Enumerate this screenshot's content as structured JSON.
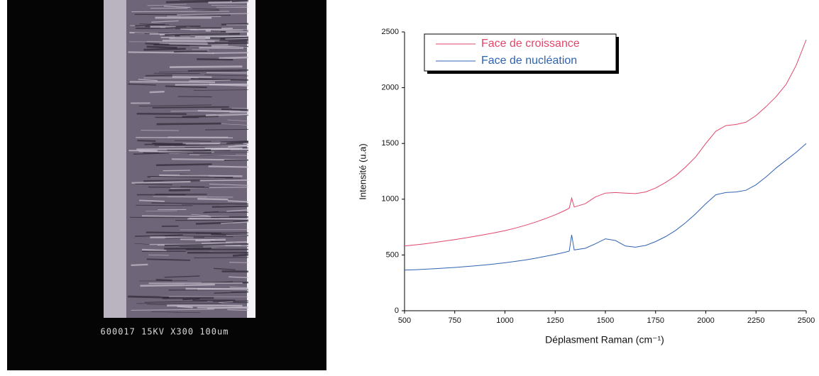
{
  "sem_image": {
    "label": "600017 15KV X300 100um"
  },
  "chart_data": {
    "type": "line",
    "x_label": "Déplasment Raman (cm⁻¹)",
    "y_label": "Intensité (u.a)",
    "xlim": [
      500,
      2500
    ],
    "xticks": [
      500,
      750,
      1000,
      1250,
      1500,
      1750,
      2000,
      2250,
      2500
    ],
    "ylim": [
      0,
      2500
    ],
    "yticks": [
      0,
      500,
      1000,
      1500,
      2000,
      2500
    ],
    "legend": "upper-left",
    "x": [
      500,
      550,
      600,
      650,
      700,
      750,
      800,
      850,
      900,
      950,
      1000,
      1050,
      1100,
      1150,
      1200,
      1250,
      1300,
      1320,
      1332,
      1345,
      1400,
      1450,
      1500,
      1550,
      1600,
      1650,
      1700,
      1750,
      1800,
      1850,
      1900,
      1950,
      2000,
      2050,
      2100,
      2150,
      2200,
      2250,
      2300,
      2350,
      2400,
      2450,
      2500
    ],
    "series": [
      {
        "name": "Face de croissance",
        "color": "#e0476a",
        "values": [
          580,
          590,
          600,
          612,
          625,
          638,
          652,
          667,
          683,
          700,
          718,
          740,
          765,
          793,
          825,
          860,
          900,
          920,
          1010,
          930,
          960,
          1020,
          1055,
          1060,
          1055,
          1050,
          1065,
          1100,
          1150,
          1210,
          1290,
          1380,
          1500,
          1610,
          1660,
          1670,
          1690,
          1750,
          1830,
          1920,
          2030,
          2200,
          2430
        ]
      },
      {
        "name": "Face de nucléation",
        "color": "#2f63b0",
        "values": [
          365,
          368,
          372,
          377,
          382,
          388,
          395,
          402,
          410,
          420,
          430,
          442,
          455,
          470,
          487,
          505,
          525,
          535,
          680,
          545,
          560,
          600,
          645,
          630,
          580,
          570,
          585,
          620,
          665,
          720,
          790,
          870,
          960,
          1040,
          1060,
          1065,
          1080,
          1130,
          1200,
          1280,
          1350,
          1420,
          1500
        ]
      }
    ]
  }
}
